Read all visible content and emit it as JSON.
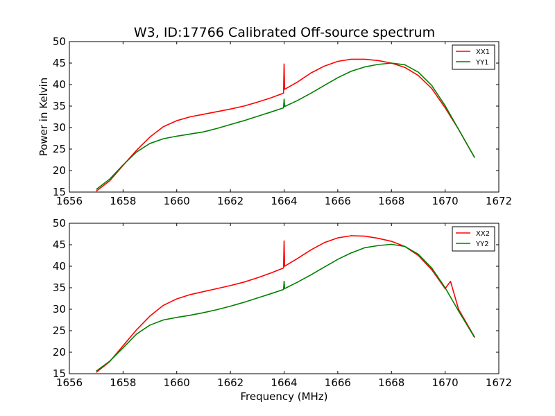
{
  "title": "W3, ID:17766 Calibrated Off-source spectrum",
  "colors": {
    "red": "#ff0000",
    "green": "#008000"
  },
  "chart_data": [
    {
      "type": "line",
      "title": "W3, ID:17766 Calibrated Off-source spectrum",
      "xlabel": "",
      "ylabel": "Power in Kelvin",
      "xlim": [
        1656,
        1672
      ],
      "ylim": [
        15,
        50
      ],
      "xticks": [
        1656,
        1658,
        1660,
        1662,
        1664,
        1666,
        1668,
        1670,
        1672
      ],
      "yticks": [
        15,
        20,
        25,
        30,
        35,
        40,
        45,
        50
      ],
      "grid": false,
      "legend": "top-right",
      "series": [
        {
          "name": "XX1",
          "color": "#ff0000",
          "x": [
            1657.0,
            1657.5,
            1658.0,
            1658.5,
            1659.0,
            1659.5,
            1660.0,
            1660.5,
            1661.0,
            1661.5,
            1662.0,
            1662.5,
            1663.0,
            1663.5,
            1663.98,
            1664.0,
            1664.02,
            1664.5,
            1665.0,
            1665.5,
            1666.0,
            1666.5,
            1667.0,
            1667.5,
            1668.0,
            1668.5,
            1669.0,
            1669.5,
            1670.0,
            1670.5,
            1671.1
          ],
          "values": [
            15.2,
            17.6,
            21.2,
            24.7,
            27.8,
            30.2,
            31.6,
            32.5,
            33.1,
            33.7,
            34.3,
            35.0,
            35.9,
            36.9,
            38.0,
            44.8,
            38.9,
            40.6,
            42.7,
            44.3,
            45.4,
            45.9,
            45.9,
            45.6,
            45.0,
            44.0,
            42.1,
            39.1,
            34.6,
            29.6,
            23.0
          ]
        },
        {
          "name": "YY1",
          "color": "#008000",
          "x": [
            1657.0,
            1657.5,
            1658.0,
            1658.5,
            1659.0,
            1659.5,
            1660.0,
            1660.5,
            1661.0,
            1661.5,
            1662.0,
            1662.5,
            1663.0,
            1663.5,
            1663.98,
            1664.0,
            1664.02,
            1664.5,
            1665.0,
            1665.5,
            1666.0,
            1666.5,
            1667.0,
            1667.5,
            1668.0,
            1668.5,
            1669.0,
            1669.5,
            1670.0,
            1670.5,
            1671.1
          ],
          "values": [
            15.6,
            18.0,
            21.3,
            24.3,
            26.3,
            27.4,
            28.0,
            28.5,
            29.0,
            29.8,
            30.7,
            31.6,
            32.6,
            33.6,
            34.6,
            36.6,
            34.9,
            36.3,
            38.0,
            39.8,
            41.6,
            43.1,
            44.1,
            44.7,
            45.0,
            44.6,
            42.9,
            39.8,
            35.1,
            29.6,
            23.0
          ]
        }
      ]
    },
    {
      "type": "line",
      "title": "",
      "xlabel": "Frequency (MHz)",
      "ylabel": "",
      "xlim": [
        1656,
        1672
      ],
      "ylim": [
        15,
        50
      ],
      "xticks": [
        1656,
        1658,
        1660,
        1662,
        1664,
        1666,
        1668,
        1670,
        1672
      ],
      "yticks": [
        15,
        20,
        25,
        30,
        35,
        40,
        45,
        50
      ],
      "grid": false,
      "legend": "top-right",
      "series": [
        {
          "name": "XX2",
          "color": "#ff0000",
          "x": [
            1657.0,
            1657.5,
            1658.0,
            1658.5,
            1659.0,
            1659.5,
            1660.0,
            1660.5,
            1661.0,
            1661.5,
            1662.0,
            1662.5,
            1663.0,
            1663.5,
            1663.98,
            1664.0,
            1664.02,
            1664.5,
            1665.0,
            1665.5,
            1666.0,
            1666.5,
            1667.0,
            1667.5,
            1668.0,
            1668.5,
            1669.0,
            1669.5,
            1670.0,
            1670.2,
            1670.5,
            1671.1
          ],
          "values": [
            15.3,
            17.8,
            21.5,
            25.2,
            28.4,
            30.9,
            32.4,
            33.4,
            34.1,
            34.8,
            35.5,
            36.3,
            37.3,
            38.4,
            39.6,
            45.9,
            40.0,
            41.8,
            43.8,
            45.5,
            46.6,
            47.1,
            47.0,
            46.5,
            45.8,
            44.6,
            42.5,
            39.2,
            34.8,
            36.5,
            30.0,
            23.5
          ]
        },
        {
          "name": "YY2",
          "color": "#008000",
          "x": [
            1657.0,
            1657.5,
            1658.0,
            1658.5,
            1659.0,
            1659.5,
            1660.0,
            1660.5,
            1661.0,
            1661.5,
            1662.0,
            1662.5,
            1663.0,
            1663.5,
            1663.98,
            1664.0,
            1664.02,
            1664.5,
            1665.0,
            1665.5,
            1666.0,
            1666.5,
            1667.0,
            1667.5,
            1668.0,
            1668.5,
            1669.0,
            1669.5,
            1670.0,
            1670.5,
            1671.1
          ],
          "values": [
            15.6,
            17.9,
            21.0,
            24.2,
            26.3,
            27.5,
            28.1,
            28.6,
            29.2,
            29.9,
            30.7,
            31.6,
            32.6,
            33.6,
            34.6,
            36.5,
            34.8,
            36.3,
            38.0,
            39.8,
            41.6,
            43.1,
            44.3,
            44.8,
            45.1,
            44.6,
            42.8,
            39.6,
            35.0,
            29.6,
            23.4
          ]
        }
      ]
    }
  ]
}
